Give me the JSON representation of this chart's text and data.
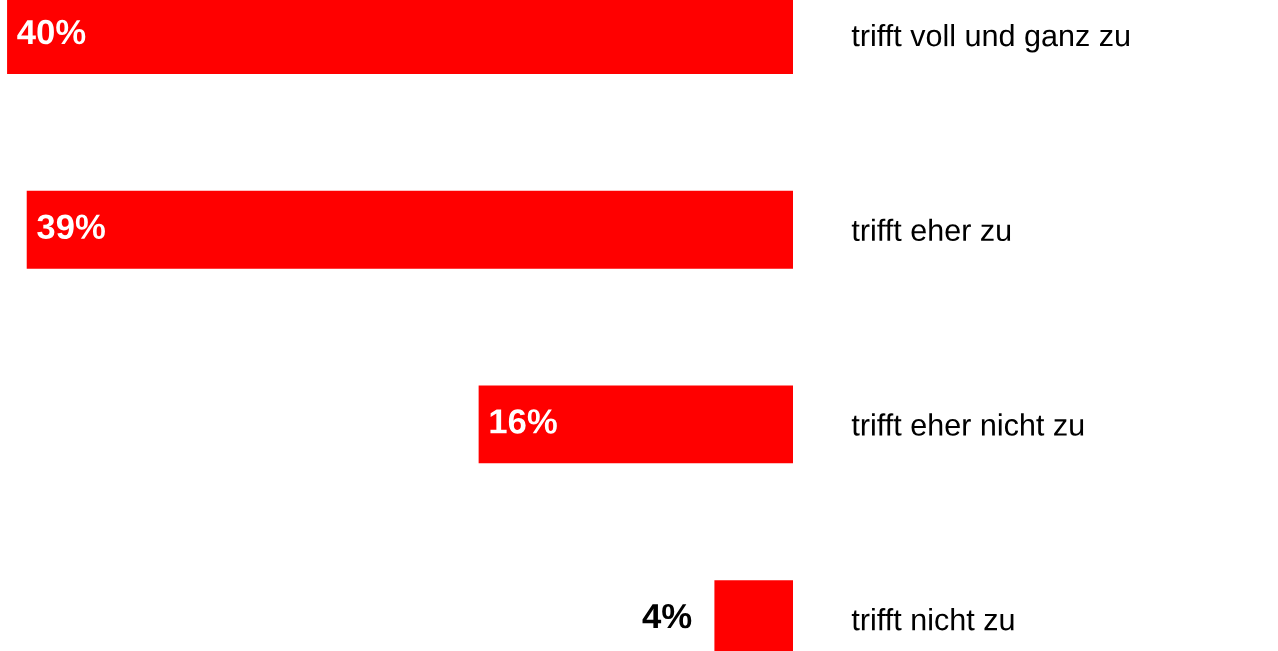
{
  "chart_data": {
    "type": "bar",
    "orientation": "horizontal",
    "categories": [
      "trifft voll und ganz zu",
      "trifft eher zu",
      "trifft eher nicht zu",
      "trifft nicht zu"
    ],
    "values": [
      40,
      39,
      16,
      4
    ],
    "color": "#ff0000",
    "value_labels": [
      "40%",
      "39%",
      "16%",
      "4%"
    ]
  }
}
